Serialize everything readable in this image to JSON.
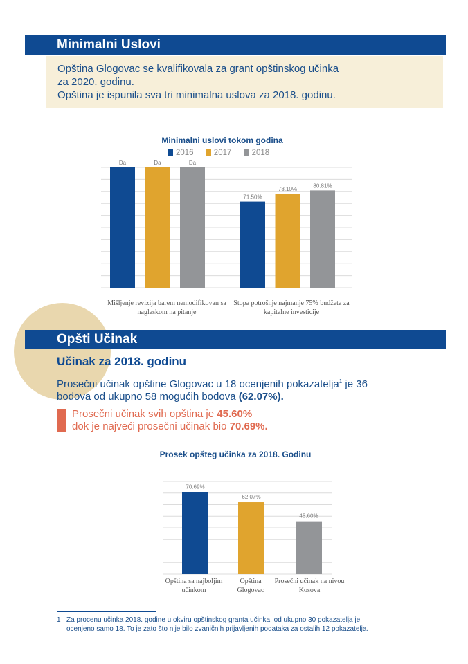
{
  "section1": {
    "title": "Minimalni Uslovi",
    "note_line1": "Opština Glogovac se kvalifikovala za grant opštinskog učinka",
    "note_line2": "za 2020. godinu.",
    "note_line3": "Opština je ispunila sva tri minimalna uslova za 2018. godinu."
  },
  "chart1": {
    "title": "Minimalni uslovi tokom godina",
    "cat1_line1": "Mišljenje revizija barem nemodifikovan sa",
    "cat1_line2": "naglaskom na pitanje",
    "cat2_line1": "Stopa potrošnje najmanje 75% budžeta za",
    "cat2_line2": "kapitalne investicije"
  },
  "section2": {
    "title": "Opšti Učinak",
    "subtitle": "Učinak za 2018. godinu",
    "para_line1": "Prosečni učinak opštine Glogovac u 18 ocenjenih pokazatelja",
    "para_sup": "1",
    "para_line1_end": " je 36",
    "para_line2": "bodova od ukupno 58 mogućih bodova ",
    "para_line2_bold": "(62.07%).",
    "hl_line1": "Prosečni učinak svih opština je ",
    "hl_line1_bold": "45.60%",
    "hl_line2": "dok je najveći prosečni učinak bio ",
    "hl_line2_bold": "70.69%."
  },
  "chart2": {
    "title": "Prosek opšteg učinka za 2018. Godinu",
    "cat1_line1": "Opština sa najboljim",
    "cat1_line2": "učinkom",
    "cat2_line1": "Opština",
    "cat2_line2": "Glogovac",
    "cat3_line1": "Prosečni učinak na nivou",
    "cat3_line2": "Kosova"
  },
  "footnote": {
    "number": "1",
    "line1": "Za procenu učinka 2018. godine u okviru opštinskog granta učinka, od ukupno 30 pokazatelja je",
    "line2": "ocenjeno samo 18. To je zato što nije bilo zvaničnih prijavljenih podataka za ostalih 12 pokazatelja."
  },
  "colors": {
    "navy": "#0f4a92",
    "gold": "#e0a42e",
    "gray": "#939598",
    "orange": "#e06a50",
    "beige": "#f7efd9"
  },
  "chart_data": [
    {
      "type": "bar",
      "title": "Minimalni uslovi tokom godina",
      "categories": [
        "Mišljenje revizija barem nemodifikovan sa naglaskom na pitanje",
        "Stopa potrošnje najmanje 75% budžeta za kapitalne investicije"
      ],
      "series": [
        {
          "name": "2016",
          "values": [
            100,
            71.5
          ],
          "labels": [
            "Da",
            "71.50%"
          ],
          "color": "#0f4a92"
        },
        {
          "name": "2017",
          "values": [
            100,
            78.1
          ],
          "labels": [
            "Da",
            "78.10%"
          ],
          "color": "#e0a42e"
        },
        {
          "name": "2018",
          "values": [
            100,
            80.81
          ],
          "labels": [
            "Da",
            "80.81%"
          ],
          "color": "#939598"
        }
      ],
      "ylim": [
        0,
        100
      ],
      "grid": true,
      "legend": "top"
    },
    {
      "type": "bar",
      "title": "Prosek opšteg učinka za 2018. Godinu",
      "categories": [
        "Opština sa najboljim učinkom",
        "Opština Glogovac",
        "Prosečni učinak na nivou Kosova"
      ],
      "values": [
        70.69,
        62.07,
        45.6
      ],
      "labels": [
        "70.69%",
        "62.07%",
        "45.60%"
      ],
      "colors": [
        "#0f4a92",
        "#e0a42e",
        "#939598"
      ],
      "ylim": [
        0,
        80
      ],
      "grid": true
    }
  ]
}
